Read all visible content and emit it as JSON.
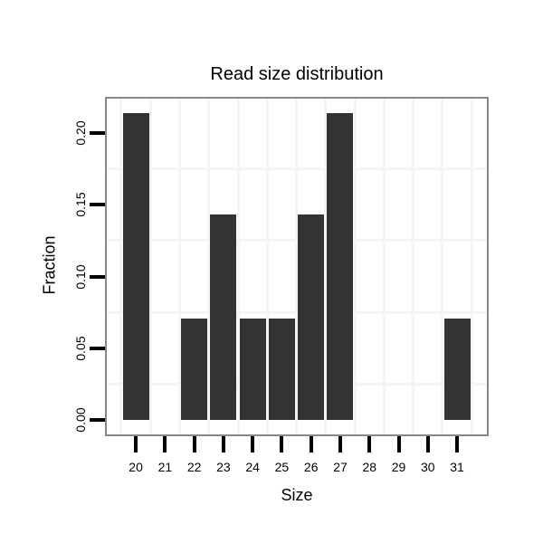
{
  "chart_data": {
    "type": "bar",
    "title": "Read size distribution",
    "xlabel": "Size",
    "ylabel": "Fraction",
    "categories": [
      20,
      21,
      22,
      23,
      24,
      25,
      26,
      27,
      28,
      29,
      30,
      31
    ],
    "values": [
      0.214,
      0,
      0.071,
      0.143,
      0.071,
      0.071,
      0.143,
      0.214,
      0,
      0,
      0,
      0.071
    ],
    "y_ticks": [
      "0.00",
      "0.05",
      "0.10",
      "0.15",
      "0.20"
    ],
    "ylim": [
      0,
      0.225
    ],
    "minor_grid_values": [
      0.025,
      0.075,
      0.125,
      0.175
    ],
    "grid": "minor-only, light gray, vertical lines at category boundaries",
    "legend": "none",
    "bar_color": "#333333",
    "grid_color": "#f4f4f4",
    "panel_border_color": "#888888",
    "tick_color": "#000000",
    "text_color": "#000000",
    "background_color": "#ffffff"
  }
}
